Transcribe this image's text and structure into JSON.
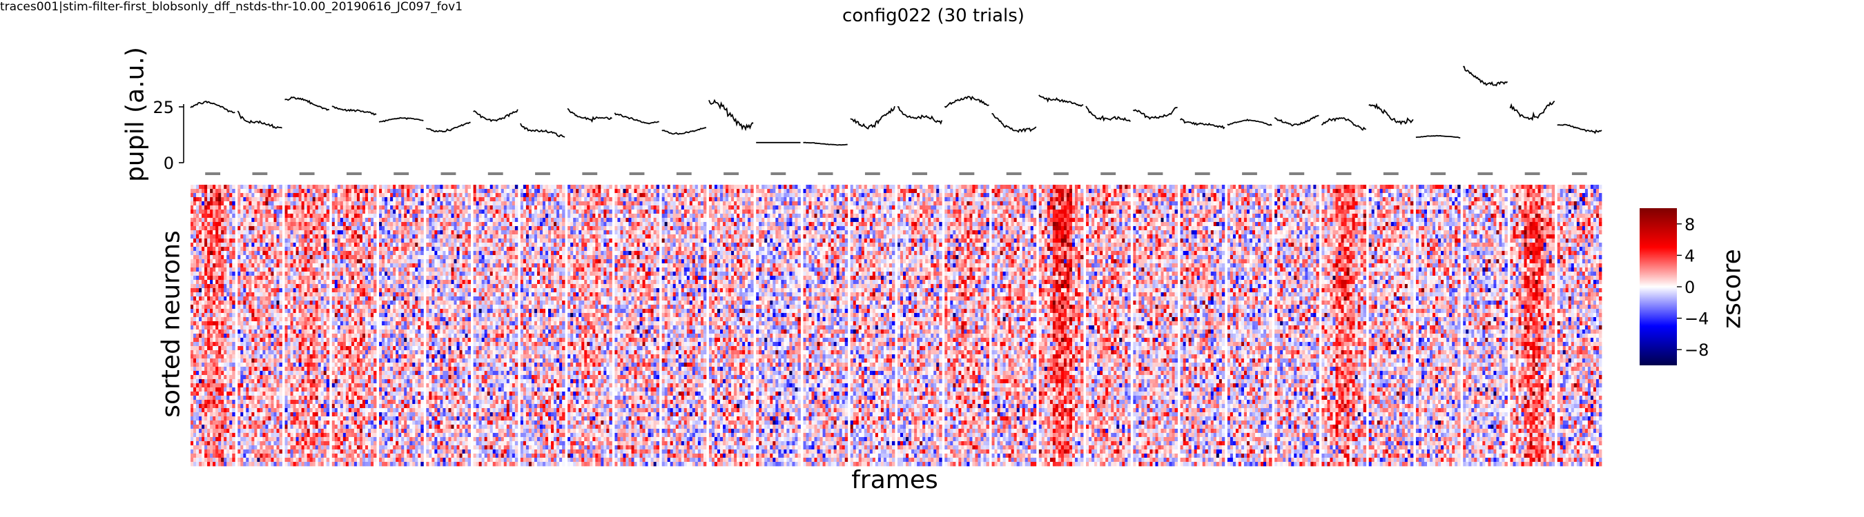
{
  "corner_label": "traces001|stim-filter-first_blobsonly_dff_nstds-thr-10.00_20190616_JC097_fov1",
  "chart_data": [
    {
      "type": "line",
      "panel": "pupil traces",
      "title": "config022 (30 trials)",
      "ylabel": "pupil (a.u.)",
      "xlabel": "",
      "yticks": [
        0,
        25
      ],
      "ylim": [
        0,
        44
      ],
      "n_trials": 30,
      "stimulus_markers": "gray bar above each trial (stimulus period)",
      "trial_pupil_ranges": [
        [
          22,
          27
        ],
        [
          15,
          24
        ],
        [
          24,
          29
        ],
        [
          22,
          26
        ],
        [
          18,
          20
        ],
        [
          14,
          18
        ],
        [
          19,
          25
        ],
        [
          12,
          18
        ],
        [
          19,
          24
        ],
        [
          18,
          22
        ],
        [
          13,
          16
        ],
        [
          16,
          27
        ],
        [
          9,
          9
        ],
        [
          8,
          9
        ],
        [
          16,
          25
        ],
        [
          18,
          26
        ],
        [
          24,
          29
        ],
        [
          14,
          21
        ],
        [
          26,
          31
        ],
        [
          18,
          25
        ],
        [
          20,
          26
        ],
        [
          16,
          20
        ],
        [
          16,
          19
        ],
        [
          17,
          22
        ],
        [
          14,
          20
        ],
        [
          18,
          26
        ],
        [
          11,
          12
        ],
        [
          35,
          42
        ],
        [
          20,
          29
        ],
        [
          14,
          17
        ]
      ]
    },
    {
      "type": "heatmap",
      "panel": "trial heatmaps",
      "xlabel": "frames",
      "ylabel": "sorted neurons",
      "colormap": "seismic",
      "colorbar_label": "zscore",
      "colorbar_ticks": [
        8,
        4,
        0,
        -4,
        -8
      ],
      "colorbar_range": [
        -10,
        10
      ],
      "trial_mean_zscore": [
        2.0,
        1.0,
        1.5,
        1.2,
        0.2,
        0.2,
        0.4,
        0.3,
        0.9,
        0.8,
        0.3,
        0.5,
        -0.3,
        0.2,
        0.3,
        0.5,
        1.0,
        0.8,
        3.0,
        1.0,
        0.5,
        0.3,
        0.2,
        0.2,
        2.2,
        0.6,
        0.2,
        0.1,
        2.6,
        0.3
      ]
    }
  ]
}
